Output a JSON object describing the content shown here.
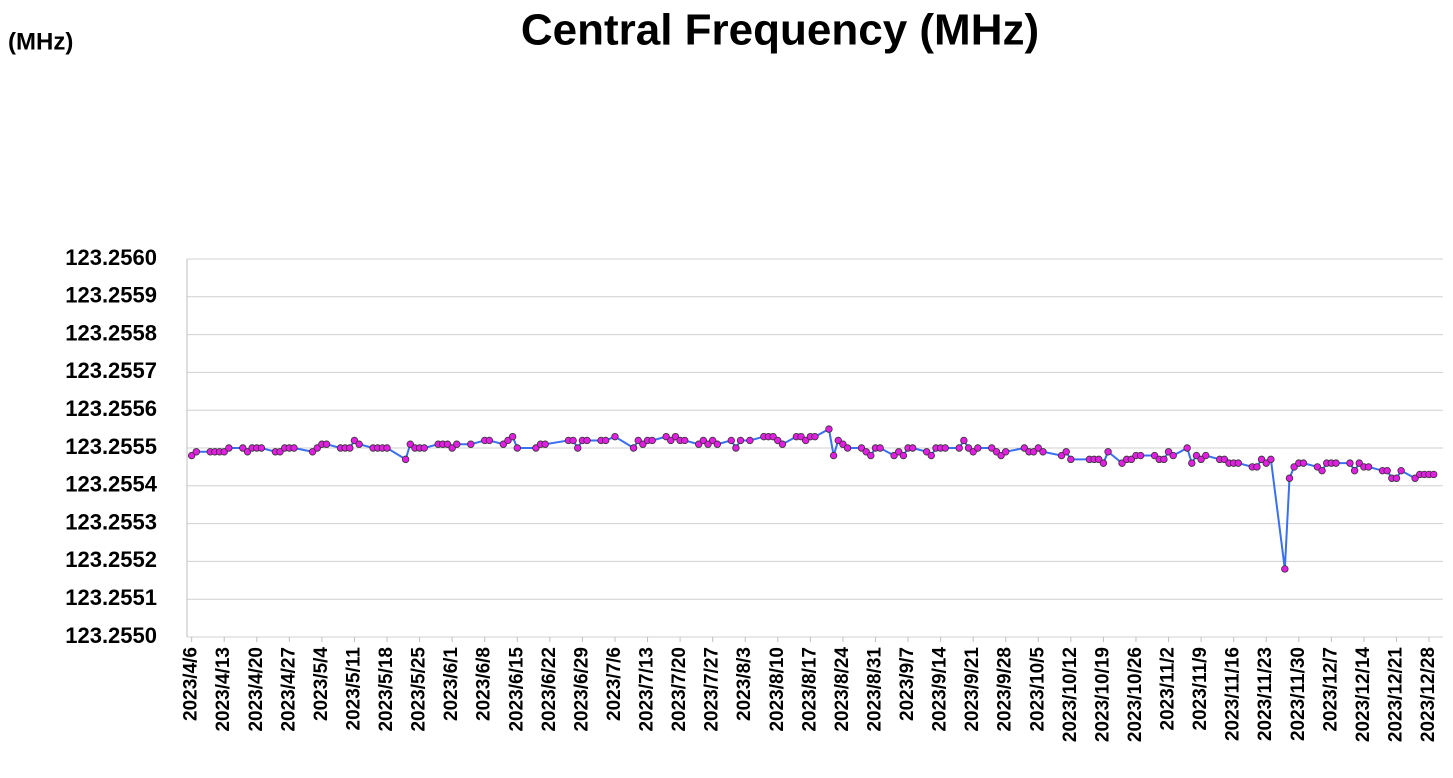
{
  "chart_data": {
    "type": "line",
    "title": "Central Frequency (MHz)",
    "y_label": "(MHz)",
    "xlim": [
      "2023/4/5",
      "2023/12/31"
    ],
    "xticks": [
      "2023/4/6",
      "2023/4/13",
      "2023/4/20",
      "2023/4/27",
      "2023/5/4",
      "2023/5/11",
      "2023/5/18",
      "2023/5/25",
      "2023/6/1",
      "2023/6/8",
      "2023/6/15",
      "2023/6/22",
      "2023/6/29",
      "2023/7/6",
      "2023/7/13",
      "2023/7/20",
      "2023/7/27",
      "2023/8/3",
      "2023/8/10",
      "2023/8/17",
      "2023/8/24",
      "2023/8/31",
      "2023/9/7",
      "2023/9/14",
      "2023/9/21",
      "2023/9/28",
      "2023/10/5",
      "2023/10/12",
      "2023/10/19",
      "2023/10/26",
      "2023/11/2",
      "2023/11/9",
      "2023/11/16",
      "2023/11/23",
      "2023/11/30",
      "2023/12/7",
      "2023/12/14",
      "2023/12/21",
      "2023/12/28"
    ],
    "ylim": [
      123.255,
      123.256
    ],
    "yticks": [
      {
        "value": 123.255,
        "label": "123.2550"
      },
      {
        "value": 123.2551,
        "label": "123.2551"
      },
      {
        "value": 123.2552,
        "label": "123.2552"
      },
      {
        "value": 123.2553,
        "label": "123.2553"
      },
      {
        "value": 123.2554,
        "label": "123.2554"
      },
      {
        "value": 123.2555,
        "label": "123.2555"
      },
      {
        "value": 123.2556,
        "label": "123.2556"
      },
      {
        "value": 123.2557,
        "label": "123.2557"
      },
      {
        "value": 123.2558,
        "label": "123.2558"
      },
      {
        "value": 123.2559,
        "label": "123.2559"
      },
      {
        "value": 123.256,
        "label": "123.2560"
      }
    ],
    "grid": true,
    "x": [
      "2023/4/6",
      "2023/4/7",
      "2023/4/10",
      "2023/4/11",
      "2023/4/12",
      "2023/4/13",
      "2023/4/14",
      "2023/4/17",
      "2023/4/18",
      "2023/4/19",
      "2023/4/20",
      "2023/4/21",
      "2023/4/24",
      "2023/4/25",
      "2023/4/26",
      "2023/4/27",
      "2023/4/28",
      "2023/5/2",
      "2023/5/3",
      "2023/5/4",
      "2023/5/5",
      "2023/5/8",
      "2023/5/9",
      "2023/5/10",
      "2023/5/11",
      "2023/5/12",
      "2023/5/15",
      "2023/5/16",
      "2023/5/17",
      "2023/5/18",
      "2023/5/22",
      "2023/5/23",
      "2023/5/24",
      "2023/5/25",
      "2023/5/26",
      "2023/5/29",
      "2023/5/30",
      "2023/5/31",
      "2023/6/1",
      "2023/6/2",
      "2023/6/5",
      "2023/6/8",
      "2023/6/9",
      "2023/6/12",
      "2023/6/13",
      "2023/6/14",
      "2023/6/15",
      "2023/6/19",
      "2023/6/20",
      "2023/6/21",
      "2023/6/26",
      "2023/6/27",
      "2023/6/28",
      "2023/6/29",
      "2023/6/30",
      "2023/7/3",
      "2023/7/4",
      "2023/7/6",
      "2023/7/10",
      "2023/7/11",
      "2023/7/12",
      "2023/7/13",
      "2023/7/14",
      "2023/7/17",
      "2023/7/18",
      "2023/7/19",
      "2023/7/20",
      "2023/7/21",
      "2023/7/24",
      "2023/7/25",
      "2023/7/26",
      "2023/7/27",
      "2023/7/28",
      "2023/7/31",
      "2023/8/1",
      "2023/8/2",
      "2023/8/4",
      "2023/8/7",
      "2023/8/8",
      "2023/8/9",
      "2023/8/10",
      "2023/8/11",
      "2023/8/14",
      "2023/8/15",
      "2023/8/16",
      "2023/8/17",
      "2023/8/18",
      "2023/8/21",
      "2023/8/22",
      "2023/8/23",
      "2023/8/24",
      "2023/8/25",
      "2023/8/28",
      "2023/8/29",
      "2023/8/30",
      "2023/8/31",
      "2023/9/1",
      "2023/9/4",
      "2023/9/5",
      "2023/9/6",
      "2023/9/7",
      "2023/9/8",
      "2023/9/11",
      "2023/9/12",
      "2023/9/13",
      "2023/9/14",
      "2023/9/15",
      "2023/9/18",
      "2023/9/19",
      "2023/9/20",
      "2023/9/21",
      "2023/9/22",
      "2023/9/25",
      "2023/9/26",
      "2023/9/27",
      "2023/9/28",
      "2023/10/2",
      "2023/10/3",
      "2023/10/4",
      "2023/10/5",
      "2023/10/6",
      "2023/10/10",
      "2023/10/11",
      "2023/10/12",
      "2023/10/16",
      "2023/10/17",
      "2023/10/18",
      "2023/10/19",
      "2023/10/20",
      "2023/10/23",
      "2023/10/24",
      "2023/10/25",
      "2023/10/26",
      "2023/10/27",
      "2023/10/30",
      "2023/10/31",
      "2023/11/1",
      "2023/11/2",
      "2023/11/3",
      "2023/11/6",
      "2023/11/7",
      "2023/11/8",
      "2023/11/9",
      "2023/11/10",
      "2023/11/13",
      "2023/11/14",
      "2023/11/15",
      "2023/11/16",
      "2023/11/17",
      "2023/11/20",
      "2023/11/21",
      "2023/11/22",
      "2023/11/23",
      "2023/11/24",
      "2023/11/27",
      "2023/11/28",
      "2023/11/29",
      "2023/11/30",
      "2023/12/1",
      "2023/12/4",
      "2023/12/5",
      "2023/12/6",
      "2023/12/7",
      "2023/12/8",
      "2023/12/11",
      "2023/12/12",
      "2023/12/13",
      "2023/12/14",
      "2023/12/15",
      "2023/12/18",
      "2023/12/19",
      "2023/12/20",
      "2023/12/21",
      "2023/12/22",
      "2023/12/25",
      "2023/12/26",
      "2023/12/27",
      "2023/12/28",
      "2023/12/29"
    ],
    "series": [
      {
        "line_color": "#3a6ff0",
        "color": "#e21ee2",
        "values": [
          123.25548,
          123.25549,
          123.25549,
          123.25549,
          123.25549,
          123.25549,
          123.2555,
          123.2555,
          123.25549,
          123.2555,
          123.2555,
          123.2555,
          123.25549,
          123.25549,
          123.2555,
          123.2555,
          123.2555,
          123.25549,
          123.2555,
          123.25551,
          123.25551,
          123.2555,
          123.2555,
          123.2555,
          123.25552,
          123.25551,
          123.2555,
          123.2555,
          123.2555,
          123.2555,
          123.25547,
          123.25551,
          123.2555,
          123.2555,
          123.2555,
          123.25551,
          123.25551,
          123.25551,
          123.2555,
          123.25551,
          123.25551,
          123.25552,
          123.25552,
          123.25551,
          123.25552,
          123.25553,
          123.2555,
          123.2555,
          123.25551,
          123.25551,
          123.25552,
          123.25552,
          123.2555,
          123.25552,
          123.25552,
          123.25552,
          123.25552,
          123.25553,
          123.2555,
          123.25552,
          123.25551,
          123.25552,
          123.25552,
          123.25553,
          123.25552,
          123.25553,
          123.25552,
          123.25552,
          123.25551,
          123.25552,
          123.25551,
          123.25552,
          123.25551,
          123.25552,
          123.2555,
          123.25552,
          123.25552,
          123.25553,
          123.25553,
          123.25553,
          123.25552,
          123.25551,
          123.25553,
          123.25553,
          123.25552,
          123.25553,
          123.25553,
          123.25555,
          123.25548,
          123.25552,
          123.25551,
          123.2555,
          123.2555,
          123.25549,
          123.25548,
          123.2555,
          123.2555,
          123.25548,
          123.25549,
          123.25548,
          123.2555,
          123.2555,
          123.25549,
          123.25548,
          123.2555,
          123.2555,
          123.2555,
          123.2555,
          123.25552,
          123.2555,
          123.25549,
          123.2555,
          123.2555,
          123.25549,
          123.25548,
          123.25549,
          123.2555,
          123.25549,
          123.25549,
          123.2555,
          123.25549,
          123.25548,
          123.25549,
          123.25547,
          123.25547,
          123.25547,
          123.25547,
          123.25546,
          123.25549,
          123.25546,
          123.25547,
          123.25547,
          123.25548,
          123.25548,
          123.25548,
          123.25547,
          123.25547,
          123.25549,
          123.25548,
          123.2555,
          123.25546,
          123.25548,
          123.25547,
          123.25548,
          123.25547,
          123.25547,
          123.25546,
          123.25546,
          123.25546,
          123.25545,
          123.25545,
          123.25547,
          123.25546,
          123.25547,
          123.25518,
          123.25542,
          123.25545,
          123.25546,
          123.25546,
          123.25545,
          123.25544,
          123.25546,
          123.25546,
          123.25546,
          123.25546,
          123.25544,
          123.25546,
          123.25545,
          123.25545,
          123.25544,
          123.25544,
          123.25542,
          123.25542,
          123.25544,
          123.25542,
          123.25543,
          123.25543,
          123.25543,
          123.25543
        ]
      }
    ]
  }
}
